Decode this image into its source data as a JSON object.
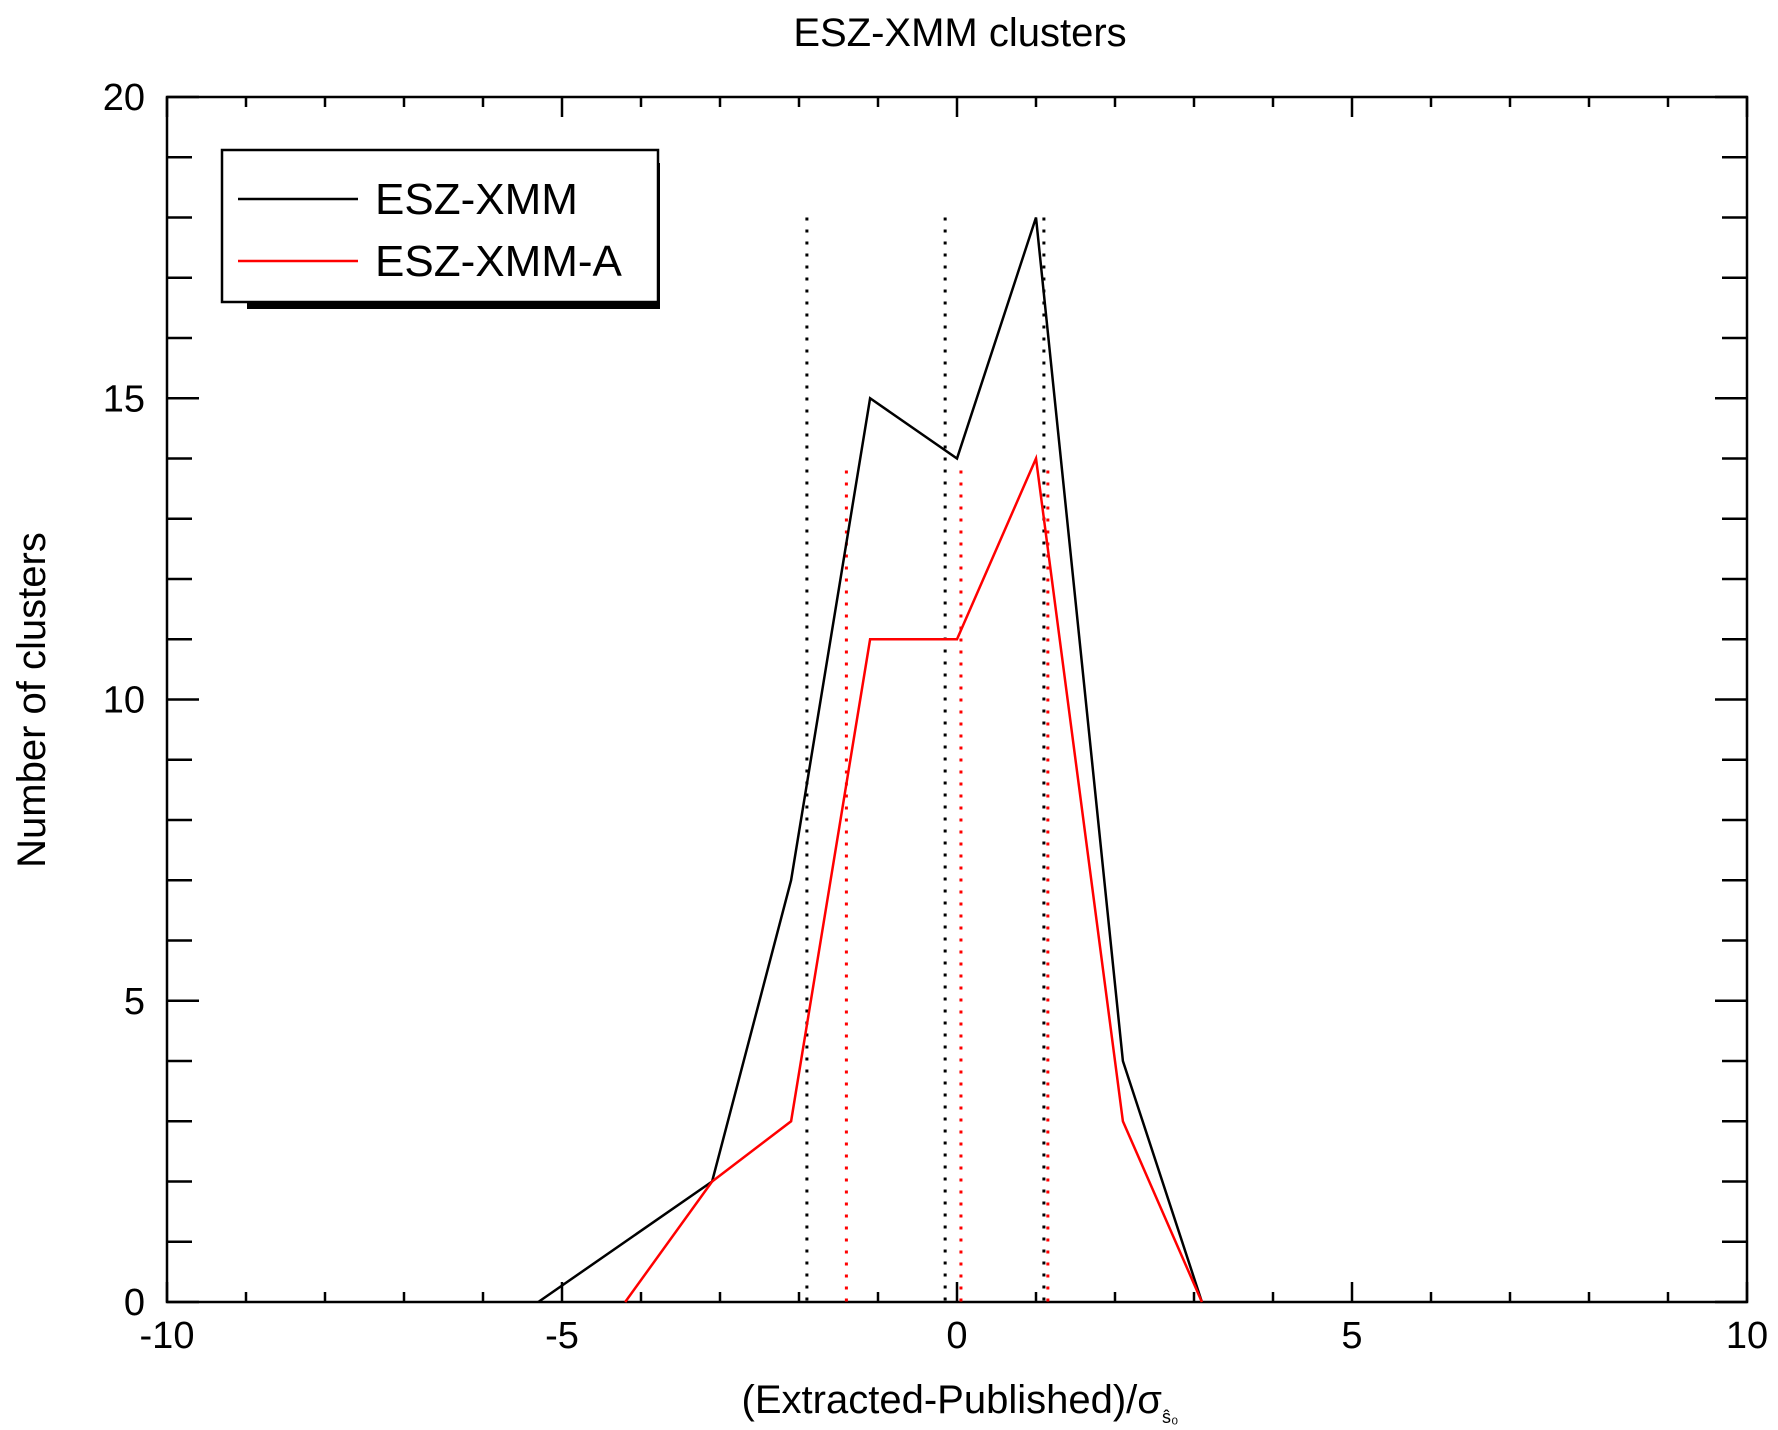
{
  "chart_data": {
    "type": "line",
    "title": "ESZ-XMM clusters",
    "xlabel": "(Extracted-Published)/σ",
    "xlabel_subscript": "ŝ₀",
    "ylabel": "Number of clusters",
    "xlim": [
      -10,
      10
    ],
    "ylim": [
      0,
      20
    ],
    "x_ticks": [
      -10,
      -5,
      0,
      5,
      10
    ],
    "x_tick_labels": [
      "-10",
      "-5",
      "0",
      "5",
      "10"
    ],
    "y_ticks": [
      0,
      5,
      10,
      15,
      20
    ],
    "y_tick_labels": [
      "0",
      "5",
      "10",
      "15",
      "20"
    ],
    "grid": false,
    "legend_position": "top-left",
    "series": [
      {
        "name": "ESZ-XMM",
        "color": "#000000",
        "points": [
          [
            -5.3,
            0
          ],
          [
            -3.1,
            2
          ],
          [
            -2.1,
            7
          ],
          [
            -1.1,
            15
          ],
          [
            0.0,
            14
          ],
          [
            1.0,
            18
          ],
          [
            2.1,
            4
          ],
          [
            3.1,
            0
          ]
        ],
        "vlines": [
          -1.9,
          -0.15,
          1.1
        ]
      },
      {
        "name": "ESZ-XMM-A",
        "color": "#ff0000",
        "points": [
          [
            -4.2,
            0
          ],
          [
            -3.1,
            2
          ],
          [
            -2.1,
            3
          ],
          [
            -1.1,
            11
          ],
          [
            0.0,
            11
          ],
          [
            1.0,
            14
          ],
          [
            2.1,
            3
          ],
          [
            3.1,
            0
          ]
        ],
        "vlines": [
          -1.4,
          0.05,
          1.15
        ]
      }
    ]
  }
}
